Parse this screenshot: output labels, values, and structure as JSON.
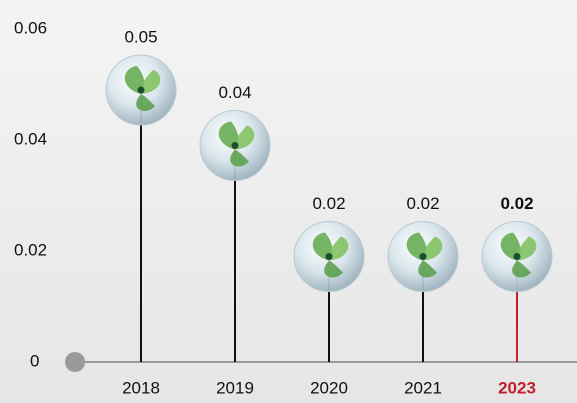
{
  "chart_data": {
    "type": "lollipop",
    "categories": [
      "2018",
      "2019",
      "2020",
      "2021",
      "2023"
    ],
    "values": [
      0.049,
      0.039,
      0.019,
      0.019,
      0.019
    ],
    "value_labels": [
      "0.05",
      "0.04",
      "0.02",
      "0.02",
      "0.02"
    ],
    "color": "#111111",
    "highlight": "2023",
    "highlight_color": "#c0202a",
    "ylim": [
      0,
      0.06
    ],
    "yticks": [
      0,
      0.02,
      0.04,
      0.06
    ]
  }
}
